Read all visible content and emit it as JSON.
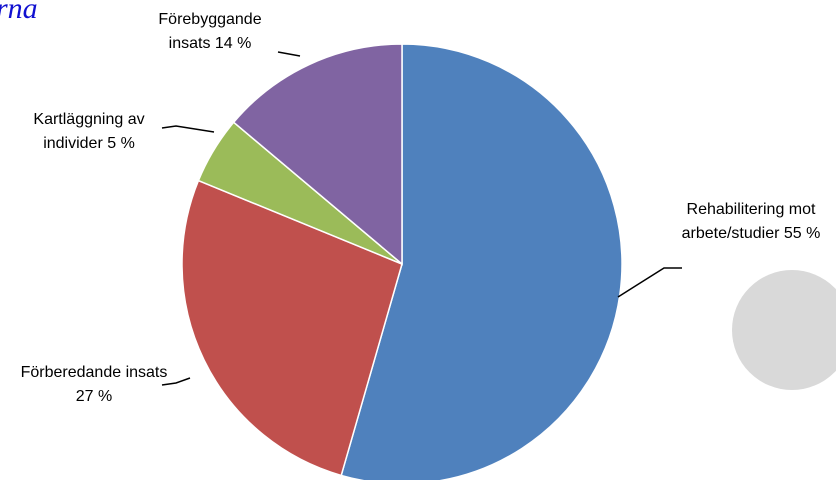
{
  "corner_text": "rna",
  "chart_data": {
    "type": "pie",
    "categories": [
      "Rehabilitering mot arbete/studier",
      "Förberedande insats",
      "Kartläggning av individer",
      "Förebyggande insats"
    ],
    "values": [
      55,
      27,
      5,
      14
    ],
    "value_labels": [
      "55 %",
      "27 %",
      "5 %",
      "14 %"
    ],
    "colors": [
      "#4f81bd",
      "#c0504d",
      "#9bbb59",
      "#8064a2"
    ]
  }
}
